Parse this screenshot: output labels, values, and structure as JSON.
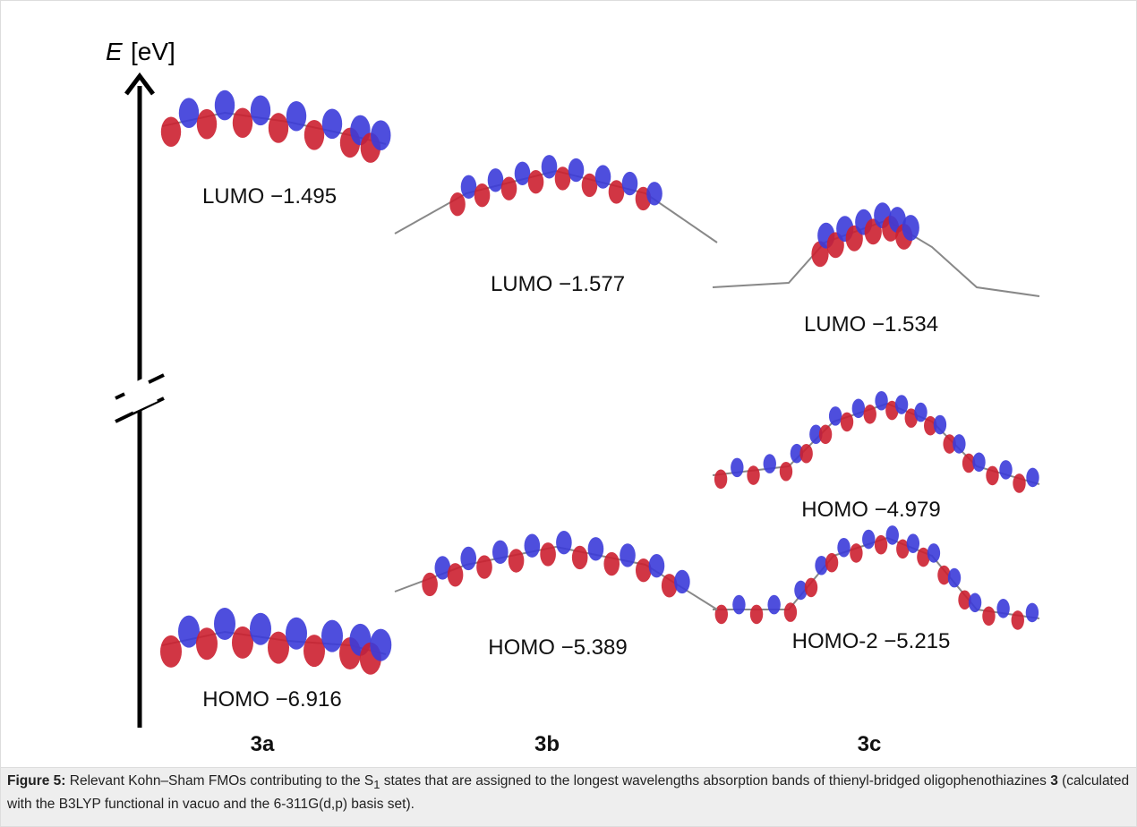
{
  "figure": {
    "axis_label": {
      "symbol": "E",
      "unit": "[eV]"
    },
    "orbitals": [
      {
        "label": "LUMO −1.495"
      },
      {
        "label": "LUMO −1.577"
      },
      {
        "label": "LUMO −1.534"
      },
      {
        "label": "HOMO −4.979"
      },
      {
        "label": "HOMO-2 −5.215"
      },
      {
        "label": "HOMO −5.389"
      },
      {
        "label": "HOMO −6.916"
      }
    ],
    "compounds": [
      "3a",
      "3b",
      "3c"
    ]
  },
  "caption": {
    "label": "Figure 5:",
    "text_1": " Relevant Kohn–Sham FMOs contributing to the S",
    "subscript": "1",
    "text_2": " states that are assigned to the longest wavelengths absorption bands of thienyl-bridged oligophenothiazines ",
    "compound": "3",
    "text_3": " (calculated with the B3LYP functional in vacuo and the 6-311G(d,p) basis set)."
  }
}
